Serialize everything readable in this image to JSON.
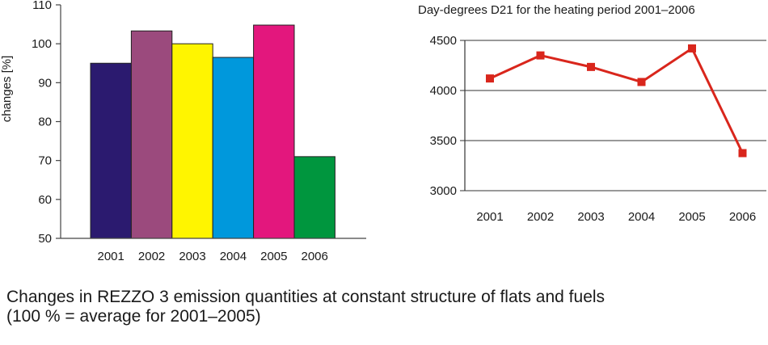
{
  "chart_data": [
    {
      "type": "bar",
      "categories": [
        "2001",
        "2002",
        "2003",
        "2004",
        "2005",
        "2006"
      ],
      "values": [
        95,
        103.3,
        100,
        96.5,
        104.8,
        71
      ],
      "colors": [
        "#2b1a6f",
        "#9b4a7d",
        "#fff500",
        "#0098dc",
        "#e3177d",
        "#00963e"
      ],
      "title": "",
      "xlabel": "",
      "ylabel": "changes [%]",
      "ylim": [
        50,
        110
      ],
      "yticks": [
        "50",
        "60",
        "70",
        "80",
        "90",
        "100",
        "110"
      ],
      "grid": false
    },
    {
      "type": "line",
      "categories": [
        "2001",
        "2002",
        "2003",
        "2004",
        "2005",
        "2006"
      ],
      "values": [
        4120,
        4350,
        4235,
        4085,
        4420,
        3375
      ],
      "series_color": "#d9261c",
      "title": "Day-degrees D21 for the heating period 2001–2006",
      "xlabel": "",
      "ylabel": "",
      "ylim": [
        3000,
        4500
      ],
      "yticks": [
        "3000",
        "3500",
        "4000",
        "4500"
      ],
      "grid": true
    }
  ],
  "caption": {
    "line1": "Changes in REZZO 3 emission quantities at constant structure of flats and fuels",
    "line2": "(100 % = average for 2001–2005)"
  }
}
